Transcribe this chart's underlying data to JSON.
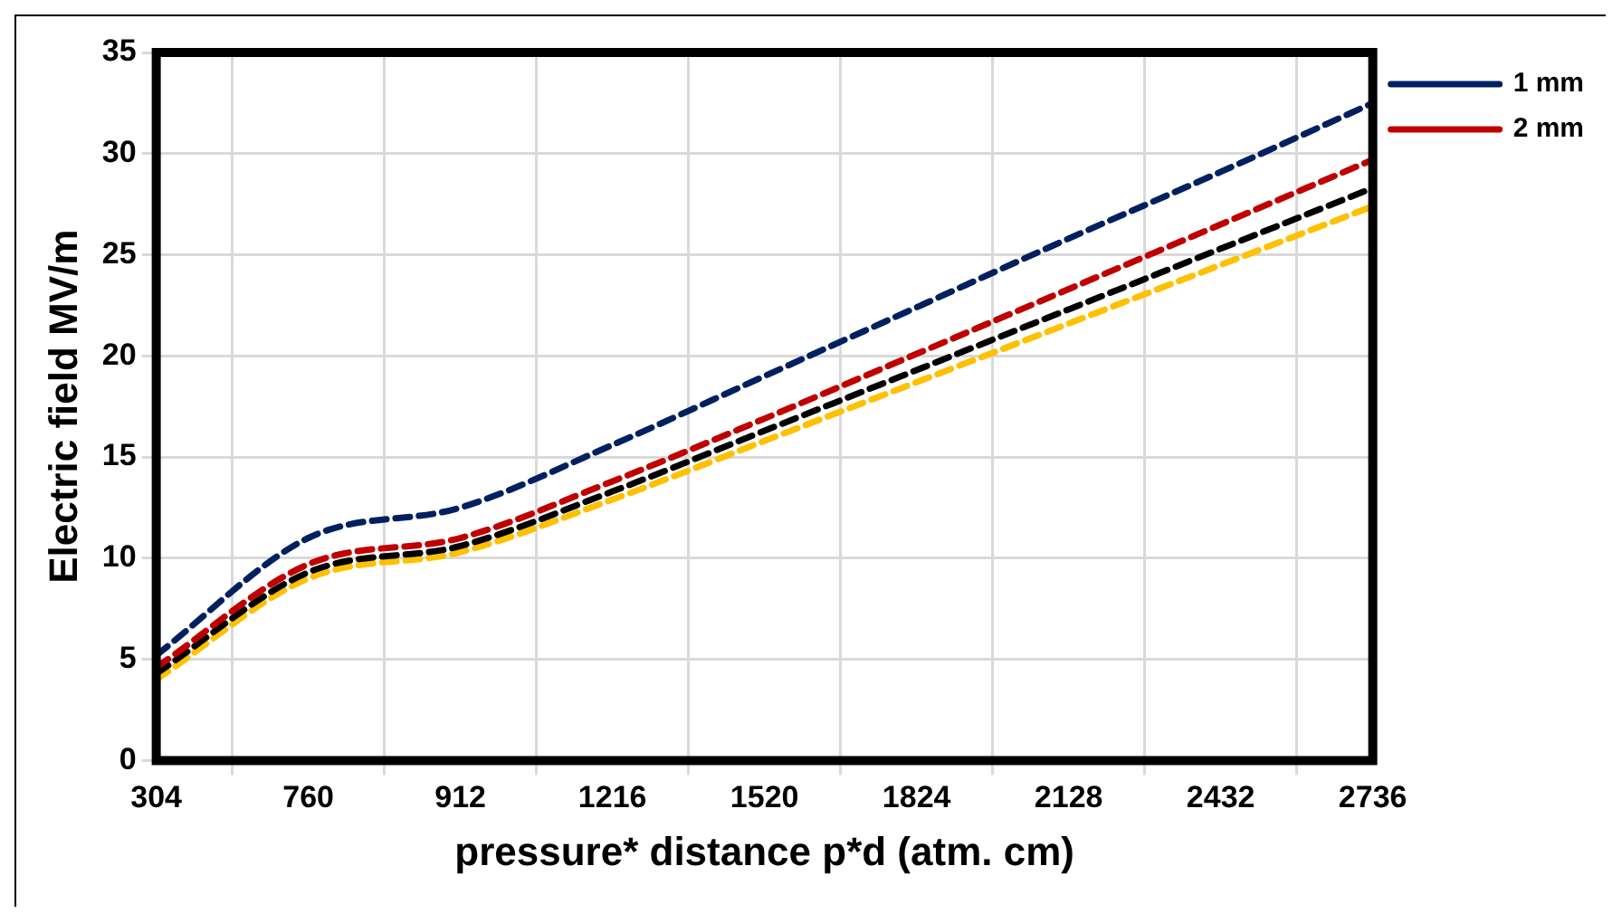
{
  "chart_data": {
    "type": "line",
    "xlabel": "pressure* distance p*d (atm. cm)",
    "ylabel": "Electric field MV/m",
    "categories": [
      "304",
      "760",
      "912",
      "1216",
      "1520",
      "1824",
      "2128",
      "2432",
      "2736"
    ],
    "series": [
      {
        "name": "1 mm",
        "color": "#002060",
        "values": [
          5.2,
          11,
          12.5,
          15.6,
          19,
          22.4,
          25.8,
          29.1,
          32.5
        ]
      },
      {
        "name": "2 mm",
        "color": "#c00000",
        "values": [
          4.6,
          9.7,
          11,
          13.8,
          16.9,
          20.1,
          23.3,
          26.5,
          29.7
        ]
      },
      {
        "color": "#000000",
        "values": [
          4.3,
          9.3,
          10.6,
          13.3,
          16.3,
          19.3,
          22.3,
          25.3,
          28.3
        ]
      },
      {
        "color": "#ffc000",
        "values": [
          4,
          9,
          10.3,
          12.9,
          15.8,
          18.7,
          21.6,
          24.5,
          27.4
        ]
      }
    ],
    "ylim": [
      0,
      35
    ],
    "yticks": [
      0,
      5,
      10,
      15,
      20,
      25,
      30,
      35
    ],
    "grid": true,
    "legend": "top right",
    "marker": "none",
    "line_style": "dashed"
  }
}
